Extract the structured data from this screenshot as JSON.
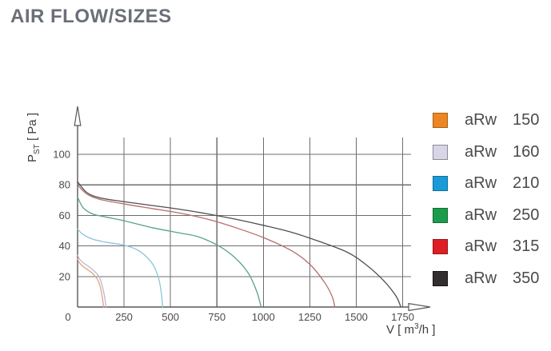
{
  "page_title": "AIR FLOW/SIZES",
  "chart_data": {
    "type": "line",
    "title": "AIR FLOW/SIZES",
    "xlabel_parts": {
      "prefix": "V [ m",
      "sup": "3",
      "suffix": "/h ]"
    },
    "ylabel_parts": {
      "prefix": "P",
      "sub": "ST",
      "suffix": " [ Pa ]"
    },
    "xlabel_text": "V [ m3/h ]",
    "ylabel_text": "PST [ Pa ]",
    "xlim": [
      0,
      1820
    ],
    "ylim": [
      0,
      112
    ],
    "x_ticks": [
      0,
      250,
      500,
      750,
      1000,
      1250,
      1500,
      1750
    ],
    "y_ticks": [
      20,
      40,
      60,
      80,
      100
    ],
    "grid": true,
    "legend_position": "right",
    "series": [
      {
        "name": "aRw",
        "size": "150",
        "label": "aRw 150",
        "legend_color": "#ec8621",
        "legend_border": "#a85f16",
        "curve_color": "#dda287",
        "points": [
          [
            0,
            31.5
          ],
          [
            10,
            29
          ],
          [
            30,
            26.5
          ],
          [
            60,
            24
          ],
          [
            85,
            21.5
          ],
          [
            105,
            18.5
          ],
          [
            118,
            15
          ],
          [
            128,
            10
          ],
          [
            136,
            4
          ],
          [
            140,
            0
          ]
        ]
      },
      {
        "name": "aRw",
        "size": "160",
        "label": "aRw 160",
        "legend_color": "#d8d5e6",
        "legend_border": "#8b8b97",
        "curve_color": "#bdb7cd",
        "points": [
          [
            0,
            34
          ],
          [
            10,
            31.5
          ],
          [
            30,
            29
          ],
          [
            60,
            26.5
          ],
          [
            90,
            23.5
          ],
          [
            112,
            20.5
          ],
          [
            128,
            16
          ],
          [
            142,
            9
          ],
          [
            150,
            3
          ],
          [
            153,
            0
          ]
        ]
      },
      {
        "name": "aRw",
        "size": "210",
        "label": "aRw 210",
        "legend_color": "#189bd7",
        "legend_border": "#0f6f9c",
        "curve_color": "#8cc5da",
        "points": [
          [
            0,
            51
          ],
          [
            30,
            47.5
          ],
          [
            80,
            44.5
          ],
          [
            150,
            42.5
          ],
          [
            250,
            40.5
          ],
          [
            320,
            37.5
          ],
          [
            370,
            33
          ],
          [
            410,
            27
          ],
          [
            438,
            18
          ],
          [
            452,
            8
          ],
          [
            458,
            0
          ]
        ]
      },
      {
        "name": "aRw",
        "size": "250",
        "label": "aRw 250",
        "legend_color": "#1b9c4a",
        "legend_border": "#126b35",
        "curve_color": "#58a28c",
        "points": [
          [
            0,
            72
          ],
          [
            30,
            65
          ],
          [
            80,
            61
          ],
          [
            150,
            59
          ],
          [
            250,
            56.5
          ],
          [
            400,
            52
          ],
          [
            550,
            48.5
          ],
          [
            650,
            46
          ],
          [
            760,
            40
          ],
          [
            850,
            32
          ],
          [
            920,
            22
          ],
          [
            965,
            10
          ],
          [
            988,
            0
          ]
        ]
      },
      {
        "name": "aRw",
        "size": "315",
        "label": "aRw 315",
        "legend_color": "#dd1e25",
        "legend_border": "#9c1217",
        "curve_color": "#b36e68",
        "points": [
          [
            0,
            80
          ],
          [
            50,
            74
          ],
          [
            120,
            70.5
          ],
          [
            250,
            67.5
          ],
          [
            400,
            64.5
          ],
          [
            550,
            61.5
          ],
          [
            700,
            57.5
          ],
          [
            850,
            52
          ],
          [
            1000,
            45.5
          ],
          [
            1150,
            37
          ],
          [
            1250,
            28
          ],
          [
            1330,
            16
          ],
          [
            1370,
            7
          ],
          [
            1385,
            0
          ]
        ]
      },
      {
        "name": "aRw",
        "size": "350",
        "label": "aRw 350",
        "legend_color": "#322e2f",
        "legend_border": "#151213",
        "curve_color": "#4f4f4f",
        "points": [
          [
            0,
            82
          ],
          [
            50,
            75
          ],
          [
            120,
            71.5
          ],
          [
            250,
            69
          ],
          [
            400,
            66.5
          ],
          [
            550,
            64
          ],
          [
            700,
            61
          ],
          [
            850,
            57.5
          ],
          [
            1000,
            53.5
          ],
          [
            1150,
            49
          ],
          [
            1300,
            43
          ],
          [
            1450,
            36
          ],
          [
            1550,
            28
          ],
          [
            1650,
            17
          ],
          [
            1715,
            7
          ],
          [
            1740,
            0
          ]
        ]
      }
    ]
  }
}
